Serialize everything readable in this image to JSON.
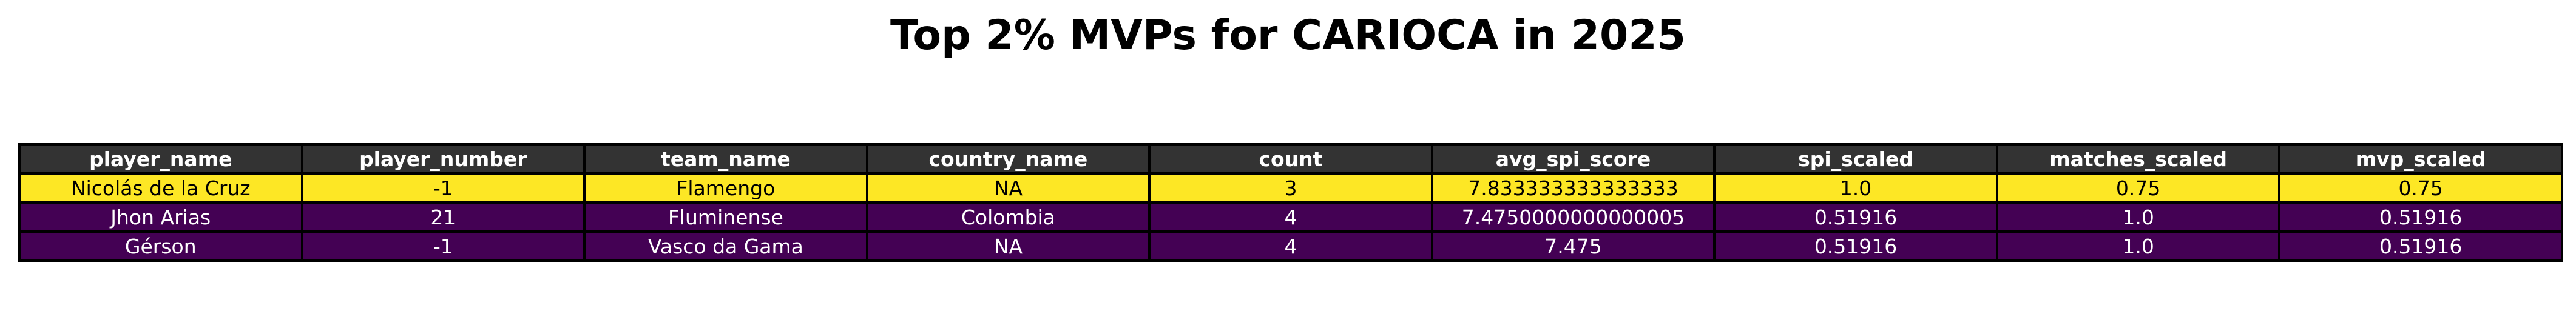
{
  "chart_data": {
    "type": "table",
    "title": "Top 2% MVPs for CARIOCA in 2025",
    "columns": [
      "player_name",
      "player_number",
      "team_name",
      "country_name",
      "count",
      "avg_spi_score",
      "spi_scaled",
      "matches_scaled",
      "mvp_scaled"
    ],
    "rows": [
      [
        "Nicolás de la Cruz",
        "-1",
        "Flamengo",
        "NA",
        "3",
        "7.833333333333333",
        "1.0",
        "0.75",
        "0.75"
      ],
      [
        "Jhon Arias",
        "21",
        "Fluminense",
        "Colombia",
        "4",
        "7.4750000000000005",
        "0.51916",
        "1.0",
        "0.51916"
      ],
      [
        "Gérson",
        "-1",
        "Vasco da Gama",
        "NA",
        "4",
        "7.475",
        "0.51916",
        "1.0",
        "0.51916"
      ]
    ]
  },
  "colors": {
    "header_bg": "#333333",
    "header_text": "#ffffff",
    "row_colors": [
      "#fde725",
      "#440154",
      "#440154"
    ],
    "row_text_colors": [
      "#000000",
      "#ffffff",
      "#ffffff"
    ],
    "border": "#000000"
  }
}
